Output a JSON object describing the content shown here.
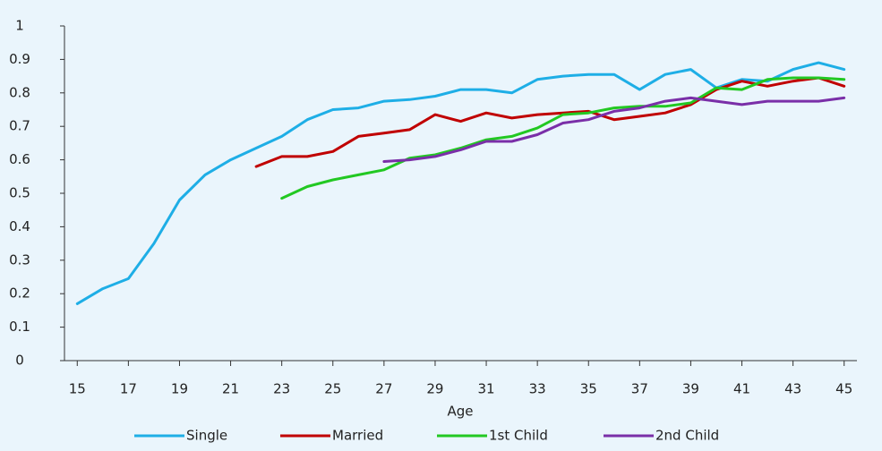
{
  "chart_data": {
    "type": "line",
    "x_label": "Age",
    "x": [
      15,
      16,
      17,
      18,
      19,
      20,
      21,
      22,
      23,
      24,
      25,
      26,
      27,
      28,
      29,
      30,
      31,
      32,
      33,
      34,
      35,
      36,
      37,
      38,
      39,
      40,
      41,
      42,
      43,
      44,
      45
    ],
    "series": [
      {
        "name": "Single",
        "color": "#1eaee6",
        "values": [
          0.17,
          0.215,
          0.245,
          0.35,
          0.48,
          0.555,
          0.6,
          0.635,
          0.67,
          0.72,
          0.75,
          0.755,
          0.775,
          0.78,
          0.79,
          0.81,
          0.81,
          0.8,
          0.84,
          0.85,
          0.855,
          0.855,
          0.81,
          0.855,
          0.87,
          0.815,
          0.84,
          0.835,
          0.87,
          0.89,
          0.87
        ]
      },
      {
        "name": "Married",
        "color": "#c00000",
        "values": [
          null,
          null,
          null,
          null,
          null,
          null,
          null,
          0.58,
          0.61,
          0.61,
          0.625,
          0.67,
          0.68,
          0.69,
          0.735,
          0.715,
          0.74,
          0.725,
          0.735,
          0.74,
          0.745,
          0.72,
          0.73,
          0.74,
          0.765,
          0.81,
          0.835,
          0.82,
          0.835,
          0.845,
          0.82
        ]
      },
      {
        "name": "1st Child",
        "color": "#22c822",
        "values": [
          null,
          null,
          null,
          null,
          null,
          null,
          null,
          null,
          0.485,
          0.52,
          0.54,
          0.555,
          0.57,
          0.605,
          0.615,
          0.635,
          0.66,
          0.67,
          0.695,
          0.735,
          0.74,
          0.755,
          0.76,
          0.76,
          0.77,
          0.815,
          0.81,
          0.84,
          0.845,
          0.845,
          0.84
        ]
      },
      {
        "name": "2nd Child",
        "color": "#7a2fa8",
        "values": [
          null,
          null,
          null,
          null,
          null,
          null,
          null,
          null,
          null,
          null,
          null,
          null,
          0.595,
          0.6,
          0.61,
          0.63,
          0.655,
          0.655,
          0.675,
          0.71,
          0.72,
          0.745,
          0.755,
          0.775,
          0.785,
          0.775,
          0.765,
          0.775,
          0.775,
          0.775,
          0.785
        ]
      }
    ],
    "xlim": [
      14.5,
      45.5
    ],
    "xticks": [
      15,
      17,
      19,
      21,
      23,
      25,
      27,
      29,
      31,
      33,
      35,
      37,
      39,
      41,
      43,
      45
    ],
    "ylim": [
      0,
      1
    ],
    "yticks": [
      0,
      0.1,
      0.2,
      0.3,
      0.4,
      0.5,
      0.6,
      0.7,
      0.8,
      0.9,
      1
    ],
    "grid": false,
    "legend": "bottom"
  }
}
